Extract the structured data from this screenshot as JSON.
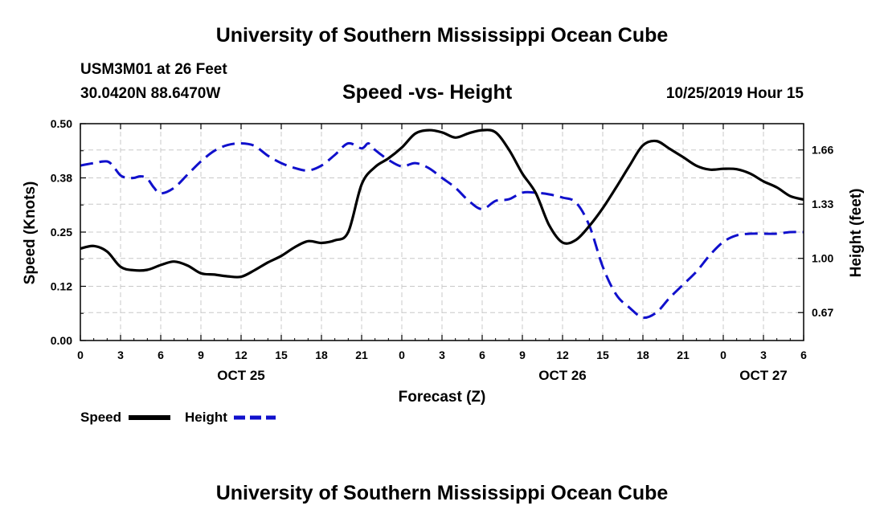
{
  "header": {
    "title": "University of Southern Mississippi Ocean Cube",
    "station": "USM3M01 at 26 Feet",
    "coords": "30.0420N 88.6470W",
    "run": "10/25/2019 Hour 15"
  },
  "footer": {
    "title": "University of Southern Mississippi Ocean Cube"
  },
  "colors": {
    "speed": "#000000",
    "height": "#1010cc",
    "grid": "#c8c8c8"
  },
  "chart_data": {
    "type": "line",
    "title": "Speed -vs- Height",
    "xlabel": "Forecast (Z)",
    "ylabel": "Speed (Knots)",
    "y2label": "Height (feet)",
    "x_range_hours": [
      0,
      54
    ],
    "x_tick_step_hours": 3,
    "x_tick_labels": [
      "0",
      "3",
      "6",
      "9",
      "12",
      "15",
      "18",
      "21",
      "0",
      "3",
      "6",
      "9",
      "12",
      "15",
      "18",
      "21",
      "0",
      "3",
      "6"
    ],
    "date_labels": [
      {
        "label": "OCT 25",
        "hour": 12
      },
      {
        "label": "OCT 26",
        "hour": 36
      },
      {
        "label": "OCT 27",
        "hour": 51
      }
    ],
    "ylim": [
      0,
      0.5
    ],
    "y_ticks": [
      0,
      0.125,
      0.25,
      0.375,
      0.5
    ],
    "y_tick_labels": [
      "0.00",
      "0.12",
      "0.25",
      "0.38",
      "0.50"
    ],
    "y2lim": [
      0.5,
      1.82
    ],
    "y2_ticks": [
      0.67,
      1.0,
      1.33,
      1.66
    ],
    "y2_tick_labels": [
      "0.67",
      "1.00",
      "1.33",
      "1.66"
    ],
    "grid": true,
    "legend": {
      "speed_label": "Speed",
      "height_label": "Height",
      "placement": "bottom-left"
    },
    "series": [
      {
        "name": "Speed",
        "axis": "left",
        "style": "solid",
        "x": [
          0,
          1,
          2,
          3,
          4,
          5,
          6,
          7,
          8,
          9,
          10,
          11,
          12,
          13,
          14,
          15,
          16,
          17,
          18,
          19,
          20,
          21,
          22,
          23,
          24,
          25,
          26,
          27,
          28,
          29,
          30,
          31,
          32,
          33,
          34,
          35,
          36,
          37,
          38,
          39,
          40,
          41,
          42,
          43,
          44,
          45,
          46,
          47,
          48,
          49,
          50,
          51,
          52,
          53,
          54
        ],
        "values": [
          0.212,
          0.218,
          0.205,
          0.17,
          0.162,
          0.163,
          0.174,
          0.182,
          0.173,
          0.155,
          0.152,
          0.148,
          0.147,
          0.162,
          0.18,
          0.195,
          0.215,
          0.229,
          0.225,
          0.231,
          0.25,
          0.36,
          0.4,
          0.42,
          0.445,
          0.477,
          0.485,
          0.48,
          0.468,
          0.478,
          0.485,
          0.48,
          0.44,
          0.385,
          0.34,
          0.266,
          0.226,
          0.232,
          0.264,
          0.305,
          0.353,
          0.403,
          0.45,
          0.46,
          0.442,
          0.423,
          0.403,
          0.394,
          0.396,
          0.395,
          0.385,
          0.367,
          0.353,
          0.333,
          0.325
        ]
      },
      {
        "name": "Height",
        "axis": "right",
        "style": "dashed",
        "x": [
          0,
          1,
          2,
          2.5,
          3,
          3.5,
          4,
          4.5,
          5,
          5.5,
          6,
          7,
          8,
          9,
          10,
          11,
          12,
          13,
          14,
          15,
          16,
          17,
          18,
          19,
          20,
          21,
          21.5,
          22,
          23,
          24,
          25,
          26,
          27,
          28,
          29,
          30,
          31,
          32,
          33,
          34,
          35,
          36,
          37,
          38,
          39,
          40,
          41,
          42,
          43,
          44,
          45,
          46,
          47,
          48,
          49,
          50,
          51,
          52,
          53,
          54
        ],
        "values": [
          1.565,
          1.58,
          1.59,
          1.555,
          1.505,
          1.49,
          1.49,
          1.5,
          1.485,
          1.43,
          1.395,
          1.43,
          1.51,
          1.59,
          1.655,
          1.69,
          1.7,
          1.685,
          1.625,
          1.58,
          1.55,
          1.535,
          1.565,
          1.63,
          1.7,
          1.67,
          1.7,
          1.66,
          1.6,
          1.56,
          1.58,
          1.55,
          1.49,
          1.43,
          1.35,
          1.3,
          1.35,
          1.36,
          1.4,
          1.4,
          1.39,
          1.37,
          1.34,
          1.2,
          0.95,
          0.78,
          0.7,
          0.64,
          0.67,
          0.76,
          0.84,
          0.92,
          1.02,
          1.1,
          1.14,
          1.15,
          1.15,
          1.15,
          1.16,
          1.16
        ]
      }
    ]
  }
}
